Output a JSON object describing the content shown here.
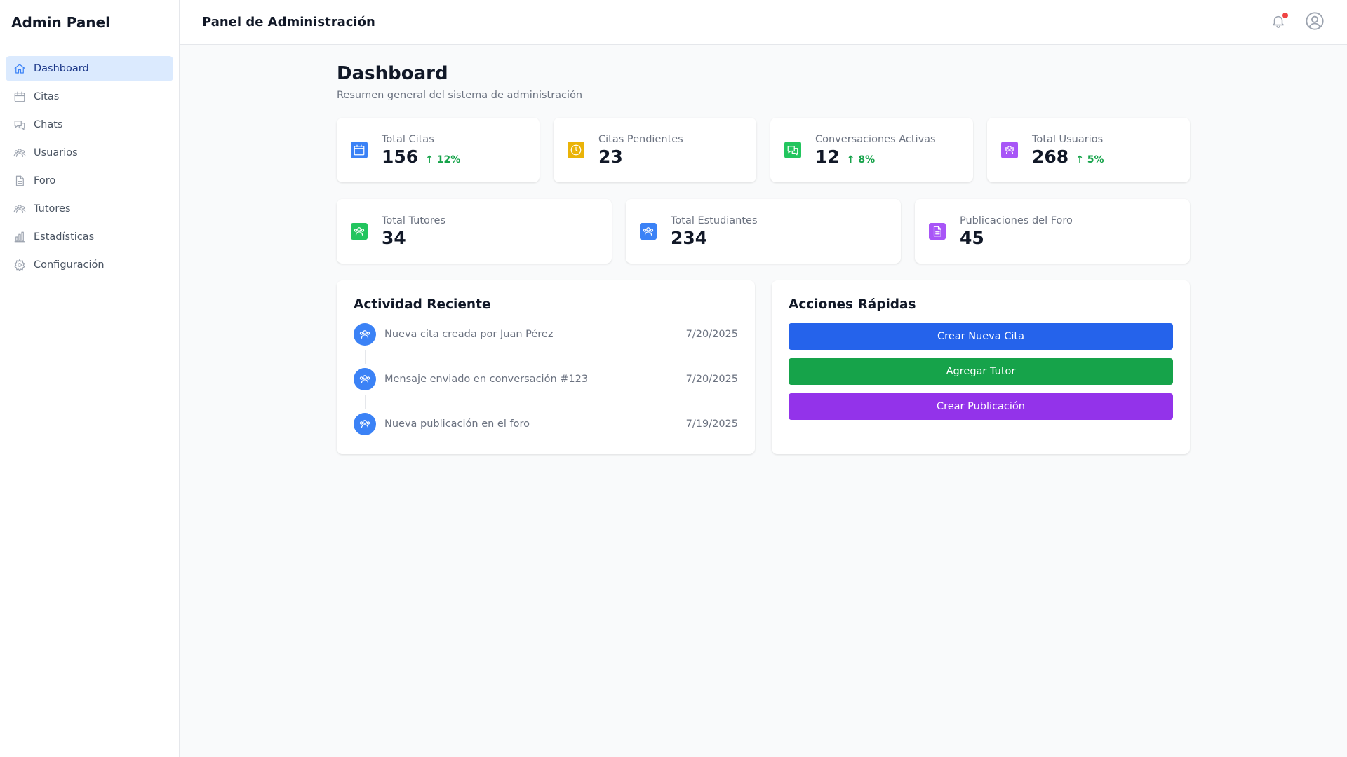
{
  "sidebar": {
    "brand": "Admin Panel",
    "items": [
      {
        "label": "Dashboard",
        "icon": "home-icon",
        "active": true
      },
      {
        "label": "Citas",
        "icon": "calendar-icon"
      },
      {
        "label": "Chats",
        "icon": "chat-icon"
      },
      {
        "label": "Usuarios",
        "icon": "users-icon"
      },
      {
        "label": "Foro",
        "icon": "document-icon"
      },
      {
        "label": "Tutores",
        "icon": "users-icon"
      },
      {
        "label": "Estadísticas",
        "icon": "bar-chart-icon"
      },
      {
        "label": "Configuración",
        "icon": "gear-icon"
      }
    ]
  },
  "header": {
    "title": "Panel de Administración",
    "notification_icon": "bell-icon",
    "profile_icon": "user-circle-icon"
  },
  "main": {
    "title": "Dashboard",
    "subtitle": "Resumen general del sistema de administración",
    "stats_row1": [
      {
        "label": "Total Citas",
        "value": "156",
        "change": "↑ 12%",
        "icon": "calendar-icon",
        "color": "#3b82f6"
      },
      {
        "label": "Citas Pendientes",
        "value": "23",
        "change": "",
        "icon": "clock-icon",
        "color": "#eab308"
      },
      {
        "label": "Conversaciones Activas",
        "value": "12",
        "change": "↑ 8%",
        "icon": "chat-icon",
        "color": "#22c55e"
      },
      {
        "label": "Total Usuarios",
        "value": "268",
        "change": "↑ 5%",
        "icon": "users-icon",
        "color": "#a855f7"
      }
    ],
    "stats_row2": [
      {
        "label": "Total Tutores",
        "value": "34",
        "icon": "users-icon",
        "color": "#22c55e"
      },
      {
        "label": "Total Estudiantes",
        "value": "234",
        "icon": "users-icon",
        "color": "#3b82f6"
      },
      {
        "label": "Publicaciones del Foro",
        "value": "45",
        "icon": "document-icon",
        "color": "#a855f7"
      }
    ],
    "activity": {
      "title": "Actividad Reciente",
      "items": [
        {
          "text": "Nueva cita creada por Juan Pérez",
          "date": "7/20/2025"
        },
        {
          "text": "Mensaje enviado en conversación #123",
          "date": "7/20/2025"
        },
        {
          "text": "Nueva publicación en el foro",
          "date": "7/19/2025"
        }
      ]
    },
    "quick_actions": {
      "title": "Acciones Rápidas",
      "buttons": [
        {
          "label": "Crear Nueva Cita",
          "color": "#2563eb"
        },
        {
          "label": "Agregar Tutor",
          "color": "#16a34a"
        },
        {
          "label": "Crear Publicación",
          "color": "#9333ea"
        }
      ]
    }
  }
}
